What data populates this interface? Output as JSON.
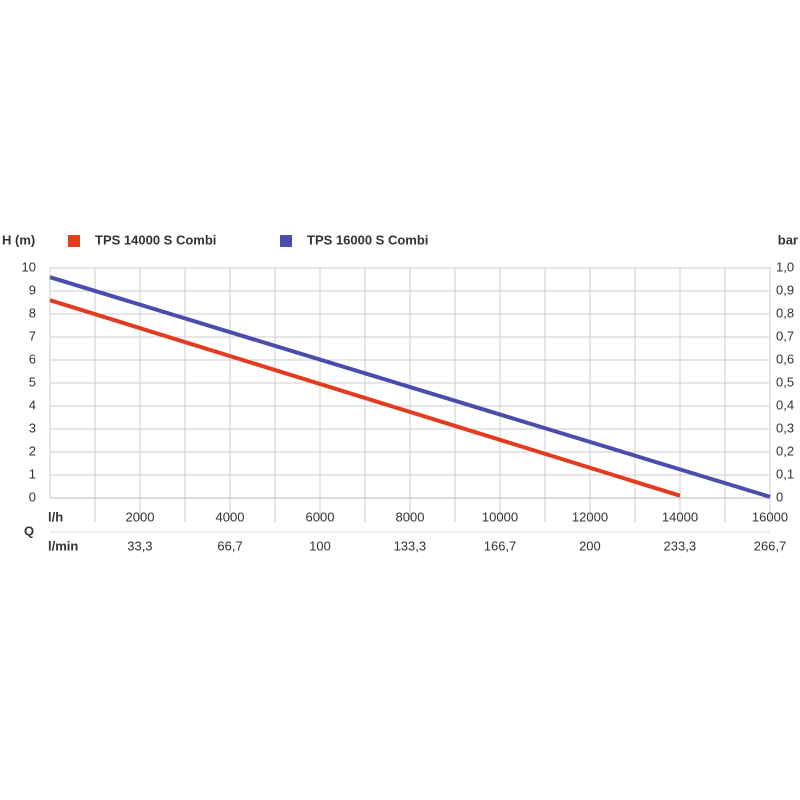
{
  "chart_data": {
    "type": "line",
    "y_label": "H (m)",
    "y2_label": "bar",
    "x_label": "l/h",
    "x2_label": "l/min",
    "x_axis_title": "Q",
    "xlim": [
      0,
      16000
    ],
    "xticks": [
      2000,
      4000,
      6000,
      8000,
      10000,
      12000,
      14000,
      16000
    ],
    "xminorticks": [
      1000,
      3000,
      5000,
      7000,
      9000,
      11000,
      13000,
      15000
    ],
    "x2lim": [
      0,
      266.7
    ],
    "x2ticks": [
      {
        "value": 33.3,
        "label": "33,3"
      },
      {
        "value": 66.7,
        "label": "66,7"
      },
      100,
      {
        "value": 133.3,
        "label": "133,3"
      },
      {
        "value": 166.7,
        "label": "166,7"
      },
      200,
      {
        "value": 233.3,
        "label": "233,3"
      },
      {
        "value": 266.7,
        "label": "266,7"
      }
    ],
    "ylim": [
      0,
      10
    ],
    "yticks": [
      0,
      1,
      2,
      3,
      4,
      5,
      6,
      7,
      8,
      9,
      10
    ],
    "y2lim": [
      0,
      1
    ],
    "y2ticks": [
      0,
      {
        "value": 0.1,
        "label": "0,1"
      },
      {
        "value": 0.2,
        "label": "0,2"
      },
      {
        "value": 0.3,
        "label": "0,3"
      },
      {
        "value": 0.4,
        "label": "0,4"
      },
      {
        "value": 0.5,
        "label": "0,5"
      },
      {
        "value": 0.6,
        "label": "0,6"
      },
      {
        "value": 0.7,
        "label": "0,7"
      },
      {
        "value": 0.8,
        "label": "0,8"
      },
      {
        "value": 0.9,
        "label": "0,9"
      },
      {
        "value": 1.0,
        "label": "1,0"
      }
    ],
    "grid": true,
    "legend": "top-left",
    "series": [
      {
        "name": "TPS 14000 S Combi",
        "color": "#e23b1f",
        "x": [
          0,
          14000
        ],
        "values": [
          8.6,
          0.1
        ]
      },
      {
        "name": "TPS 16000 S Combi",
        "color": "#4b4dac",
        "x": [
          0,
          16000
        ],
        "values": [
          9.6,
          0.05
        ]
      }
    ]
  }
}
